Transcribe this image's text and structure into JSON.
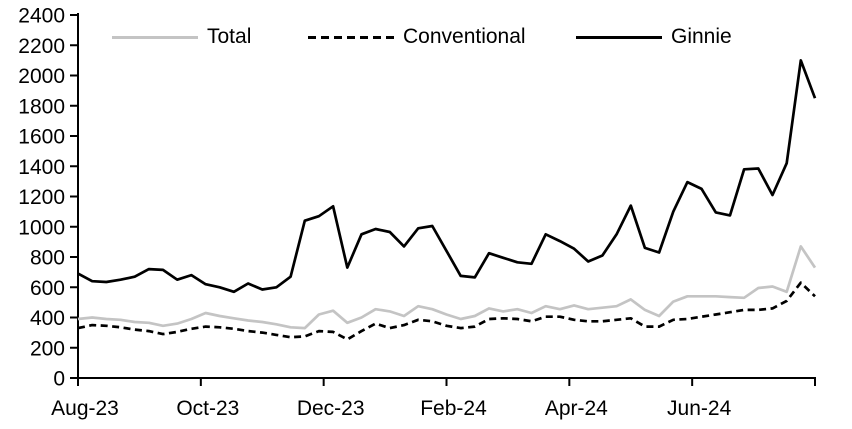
{
  "chart_data": {
    "type": "line",
    "title": "",
    "xlabel": "",
    "ylabel": "",
    "ylim": [
      0,
      2400
    ],
    "y_axis": {
      "min": 0,
      "max": 2400,
      "step": 200,
      "tick_labels": [
        "0",
        "200",
        "400",
        "600",
        "800",
        "1000",
        "1200",
        "1400",
        "1600",
        "1800",
        "2000",
        "2200",
        "2400"
      ]
    },
    "x_tick_labels": [
      "Aug-23",
      "Oct-23",
      "Dec-23",
      "Feb-24",
      "Apr-24",
      "Jun-24"
    ],
    "x_unit": "week",
    "grid": false,
    "legend_position": "top",
    "series": [
      {
        "name": "Total",
        "color": "#c4c4c4",
        "style": "solid",
        "values": [
          390,
          400,
          390,
          385,
          370,
          365,
          345,
          360,
          390,
          430,
          410,
          395,
          380,
          370,
          355,
          335,
          330,
          420,
          445,
          365,
          400,
          455,
          440,
          410,
          475,
          455,
          420,
          390,
          410,
          460,
          440,
          455,
          430,
          475,
          455,
          480,
          455,
          465,
          475,
          520,
          450,
          410,
          505,
          540,
          540,
          540,
          535,
          530,
          595,
          605,
          570,
          870,
          730
        ]
      },
      {
        "name": "Conventional",
        "color": "#000000",
        "style": "dashed",
        "values": [
          330,
          350,
          345,
          335,
          320,
          310,
          290,
          305,
          325,
          340,
          335,
          325,
          310,
          300,
          285,
          270,
          275,
          310,
          305,
          255,
          310,
          360,
          330,
          350,
          385,
          375,
          345,
          330,
          340,
          390,
          395,
          390,
          375,
          405,
          405,
          385,
          375,
          375,
          385,
          395,
          340,
          340,
          385,
          390,
          405,
          420,
          435,
          450,
          450,
          460,
          510,
          630,
          540
        ]
      },
      {
        "name": "Ginnie",
        "color": "#000000",
        "style": "solid",
        "values": [
          690,
          640,
          635,
          650,
          670,
          720,
          715,
          650,
          680,
          620,
          600,
          570,
          625,
          585,
          600,
          670,
          1040,
          1070,
          1135,
          730,
          950,
          985,
          965,
          870,
          990,
          1005,
          840,
          675,
          665,
          825,
          795,
          765,
          755,
          950,
          905,
          855,
          770,
          810,
          950,
          1140,
          860,
          830,
          1100,
          1295,
          1250,
          1095,
          1075,
          1380,
          1385,
          1210,
          1420,
          2100,
          1850
        ]
      }
    ]
  }
}
